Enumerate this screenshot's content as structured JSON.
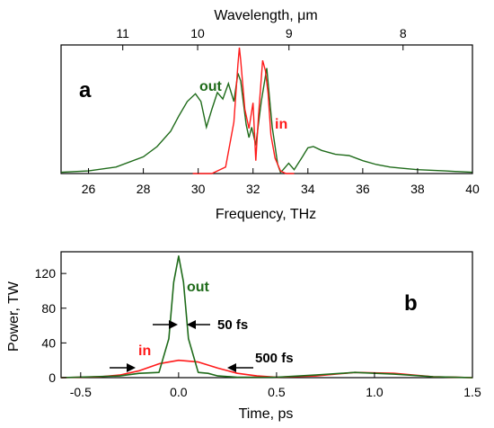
{
  "colors": {
    "out": "#1f6b1a",
    "in": "#ff1a1a",
    "axis": "#000000"
  },
  "chart_data": [
    {
      "type": "line",
      "panel_label": "a",
      "xlabel": "Frequency, THz",
      "top_axis_label": "Wavelength, μm",
      "ylabel": "",
      "xlim": [
        25,
        40
      ],
      "ylim": [
        0,
        1
      ],
      "x_ticks": [
        "26",
        "28",
        "30",
        "32",
        "34",
        "36",
        "38",
        "40"
      ],
      "top_ticks": [
        {
          "label": "11",
          "frequency_thz": 27.25
        },
        {
          "label": "10",
          "frequency_thz": 29.98
        },
        {
          "label": "9",
          "frequency_thz": 33.31
        },
        {
          "label": "8",
          "frequency_thz": 37.47
        }
      ],
      "series": [
        {
          "name": "out",
          "color": "#1f6b1a",
          "x": [
            25.0,
            26.0,
            27.0,
            28.0,
            28.5,
            29.0,
            29.3,
            29.6,
            29.9,
            30.1,
            30.3,
            30.5,
            30.7,
            30.9,
            31.1,
            31.3,
            31.45,
            31.55,
            31.65,
            31.75,
            31.85,
            31.95,
            32.1,
            32.3,
            32.5,
            32.7,
            32.9,
            33.0,
            33.1,
            33.3,
            33.5,
            33.8,
            34.0,
            34.2,
            34.5,
            35.0,
            35.5,
            36.0,
            36.5,
            37.0,
            37.5,
            38.0,
            39.0,
            40.0
          ],
          "y": [
            0.01,
            0.02,
            0.05,
            0.13,
            0.21,
            0.33,
            0.45,
            0.56,
            0.62,
            0.56,
            0.36,
            0.5,
            0.63,
            0.58,
            0.7,
            0.56,
            0.78,
            0.72,
            0.55,
            0.38,
            0.28,
            0.36,
            0.22,
            0.56,
            0.82,
            0.36,
            0.07,
            0.01,
            0.03,
            0.08,
            0.03,
            0.13,
            0.2,
            0.21,
            0.18,
            0.15,
            0.14,
            0.1,
            0.07,
            0.05,
            0.04,
            0.03,
            0.02,
            0.01
          ]
        },
        {
          "name": "in",
          "color": "#ff1a1a",
          "x": [
            29.8,
            30.5,
            31.0,
            31.3,
            31.45,
            31.5,
            31.55,
            31.7,
            31.85,
            32.0,
            32.1,
            32.2,
            32.35,
            32.45,
            32.55,
            32.65,
            32.8,
            33.0,
            33.2,
            33.5
          ],
          "y": [
            0.0,
            0.0,
            0.05,
            0.4,
            0.85,
            0.98,
            0.88,
            0.5,
            0.35,
            0.55,
            0.1,
            0.45,
            0.88,
            0.8,
            0.62,
            0.3,
            0.12,
            0.02,
            0.0,
            0.0
          ]
        }
      ],
      "labels": {
        "out": "out",
        "in": "in"
      }
    },
    {
      "type": "line",
      "panel_label": "b",
      "xlabel": "Time, ps",
      "ylabel": "Power, TW",
      "xlim": [
        -0.6,
        1.5
      ],
      "ylim": [
        0,
        145
      ],
      "x_ticks": [
        "-0.5",
        "0.0",
        "0.5",
        "1.0",
        "1.5"
      ],
      "y_ticks": [
        "0",
        "40",
        "80",
        "120"
      ],
      "series": [
        {
          "name": "out",
          "color": "#1f6b1a",
          "x": [
            -0.6,
            -0.3,
            -0.2,
            -0.1,
            -0.05,
            -0.025,
            0.0,
            0.025,
            0.05,
            0.1,
            0.15,
            0.2,
            0.3,
            0.5,
            0.7,
            0.9,
            1.1,
            1.3,
            1.5
          ],
          "y": [
            0,
            2,
            5,
            6,
            45,
            110,
            140,
            110,
            45,
            6,
            5,
            2,
            0.5,
            0.5,
            3,
            6,
            4,
            1,
            0
          ]
        },
        {
          "name": "in",
          "color": "#ff1a1a",
          "x": [
            -0.6,
            -0.4,
            -0.3,
            -0.2,
            -0.1,
            0.0,
            0.1,
            0.2,
            0.3,
            0.4,
            0.5,
            0.7,
            0.9,
            1.1,
            1.3,
            1.5
          ],
          "y": [
            0,
            1,
            3,
            8,
            16,
            20,
            18,
            11,
            5,
            2,
            0.5,
            2,
            6,
            5,
            1,
            0
          ]
        }
      ],
      "labels": {
        "out": "out",
        "in": "in"
      },
      "annotations": {
        "fwhm_out": "50 fs",
        "fwhm_in": "500 fs"
      }
    }
  ]
}
